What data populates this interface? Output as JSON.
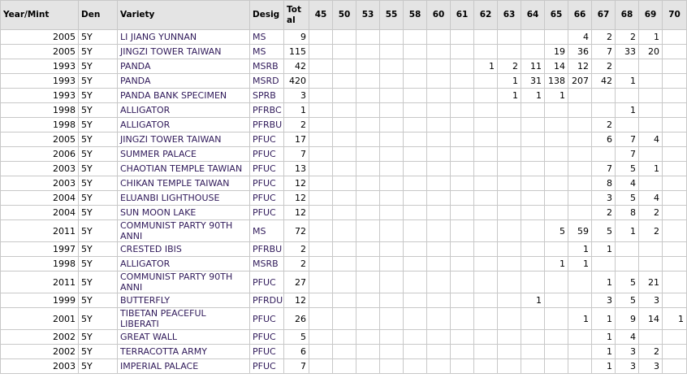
{
  "table": {
    "header": [
      "Year/Mint",
      "Den",
      "Variety",
      "Desig",
      "Total",
      45,
      50,
      53,
      55,
      58,
      60,
      61,
      62,
      63,
      64,
      65,
      66,
      67,
      68,
      69,
      70
    ],
    "rows": [
      [
        2005,
        "5Y",
        "LI JIANG YUNNAN",
        "MS",
        9,
        null,
        null,
        null,
        null,
        null,
        null,
        null,
        null,
        null,
        null,
        null,
        4,
        2,
        2,
        1,
        null
      ],
      [
        2005,
        "5Y",
        "JINGZI TOWER TAIWAN",
        "MS",
        115,
        null,
        null,
        null,
        null,
        null,
        null,
        null,
        null,
        null,
        null,
        19,
        36,
        7,
        33,
        20,
        null
      ],
      [
        1993,
        "5Y",
        "PANDA",
        "MSRB",
        42,
        null,
        null,
        null,
        null,
        null,
        null,
        null,
        1,
        2,
        11,
        14,
        12,
        2,
        null,
        null,
        null
      ],
      [
        1993,
        "5Y",
        "PANDA",
        "MSRD",
        420,
        null,
        null,
        null,
        null,
        null,
        null,
        null,
        null,
        1,
        31,
        138,
        207,
        42,
        1,
        null,
        null
      ],
      [
        1993,
        "5Y",
        "PANDA BANK SPECIMEN",
        "SPRB",
        3,
        null,
        null,
        null,
        null,
        null,
        null,
        null,
        null,
        1,
        1,
        1,
        null,
        null,
        null,
        null,
        null
      ],
      [
        1998,
        "5Y",
        "ALLIGATOR",
        "PFRBC",
        1,
        null,
        null,
        null,
        null,
        null,
        null,
        null,
        null,
        null,
        null,
        null,
        null,
        null,
        1,
        null,
        null
      ],
      [
        1998,
        "5Y",
        "ALLIGATOR",
        "PFRBU",
        2,
        null,
        null,
        null,
        null,
        null,
        null,
        null,
        null,
        null,
        null,
        null,
        null,
        2,
        null,
        null,
        null
      ],
      [
        2005,
        "5Y",
        "JINGZI TOWER TAIWAN",
        "PFUC",
        17,
        null,
        null,
        null,
        null,
        null,
        null,
        null,
        null,
        null,
        null,
        null,
        null,
        6,
        7,
        4,
        null
      ],
      [
        2006,
        "5Y",
        "SUMMER PALACE",
        "PFUC",
        7,
        null,
        null,
        null,
        null,
        null,
        null,
        null,
        null,
        null,
        null,
        null,
        null,
        null,
        7,
        null,
        null
      ],
      [
        2003,
        "5Y",
        "CHAOTIAN TEMPLE TAWIAN",
        "PFUC",
        13,
        null,
        null,
        null,
        null,
        null,
        null,
        null,
        null,
        null,
        null,
        null,
        null,
        7,
        5,
        1,
        null
      ],
      [
        2003,
        "5Y",
        "CHIKAN TEMPLE TAIWAN",
        "PFUC",
        12,
        null,
        null,
        null,
        null,
        null,
        null,
        null,
        null,
        null,
        null,
        null,
        null,
        8,
        4,
        null,
        null
      ],
      [
        2004,
        "5Y",
        "ELUANBI LIGHTHOUSE",
        "PFUC",
        12,
        null,
        null,
        null,
        null,
        null,
        null,
        null,
        null,
        null,
        null,
        null,
        null,
        3,
        5,
        4,
        null
      ],
      [
        2004,
        "5Y",
        "SUN MOON LAKE",
        "PFUC",
        12,
        null,
        null,
        null,
        null,
        null,
        null,
        null,
        null,
        null,
        null,
        null,
        null,
        2,
        8,
        2,
        null
      ],
      [
        2011,
        "5Y",
        "COMMUNIST PARTY 90TH ANNI",
        "MS",
        72,
        null,
        null,
        null,
        null,
        null,
        null,
        null,
        null,
        null,
        null,
        5,
        59,
        5,
        1,
        2,
        null
      ],
      [
        1997,
        "5Y",
        "CRESTED IBIS",
        "PFRBU",
        2,
        null,
        null,
        null,
        null,
        null,
        null,
        null,
        null,
        null,
        null,
        null,
        1,
        1,
        null,
        null,
        null
      ],
      [
        1998,
        "5Y",
        "ALLIGATOR",
        "MSRB",
        2,
        null,
        null,
        null,
        null,
        null,
        null,
        null,
        null,
        null,
        null,
        1,
        1,
        null,
        null,
        null,
        null
      ],
      [
        2011,
        "5Y",
        "COMMUNIST PARTY 90TH ANNI",
        "PFUC",
        27,
        null,
        null,
        null,
        null,
        null,
        null,
        null,
        null,
        null,
        null,
        null,
        null,
        1,
        5,
        21,
        null
      ],
      [
        1999,
        "5Y",
        "BUTTERFLY",
        "PFRDU",
        12,
        null,
        null,
        null,
        null,
        null,
        null,
        null,
        null,
        null,
        1,
        null,
        null,
        3,
        5,
        3,
        null
      ],
      [
        2001,
        "5Y",
        "TIBETAN PEACEFUL LIBERATI",
        "PFUC",
        26,
        null,
        null,
        null,
        null,
        null,
        null,
        null,
        null,
        null,
        null,
        null,
        1,
        1,
        9,
        14,
        1
      ],
      [
        2002,
        "5Y",
        "GREAT WALL",
        "PFUC",
        5,
        null,
        null,
        null,
        null,
        null,
        null,
        null,
        null,
        null,
        null,
        null,
        null,
        1,
        4,
        null,
        null
      ],
      [
        2002,
        "5Y",
        "TERRACOTTA ARMY",
        "PFUC",
        6,
        null,
        null,
        null,
        null,
        null,
        null,
        null,
        null,
        null,
        null,
        null,
        null,
        1,
        3,
        2,
        null
      ],
      [
        2003,
        "5Y",
        "IMPERIAL PALACE",
        "PFUC",
        7,
        null,
        null,
        null,
        null,
        null,
        null,
        null,
        null,
        null,
        null,
        null,
        null,
        1,
        3,
        3,
        null
      ]
    ]
  }
}
